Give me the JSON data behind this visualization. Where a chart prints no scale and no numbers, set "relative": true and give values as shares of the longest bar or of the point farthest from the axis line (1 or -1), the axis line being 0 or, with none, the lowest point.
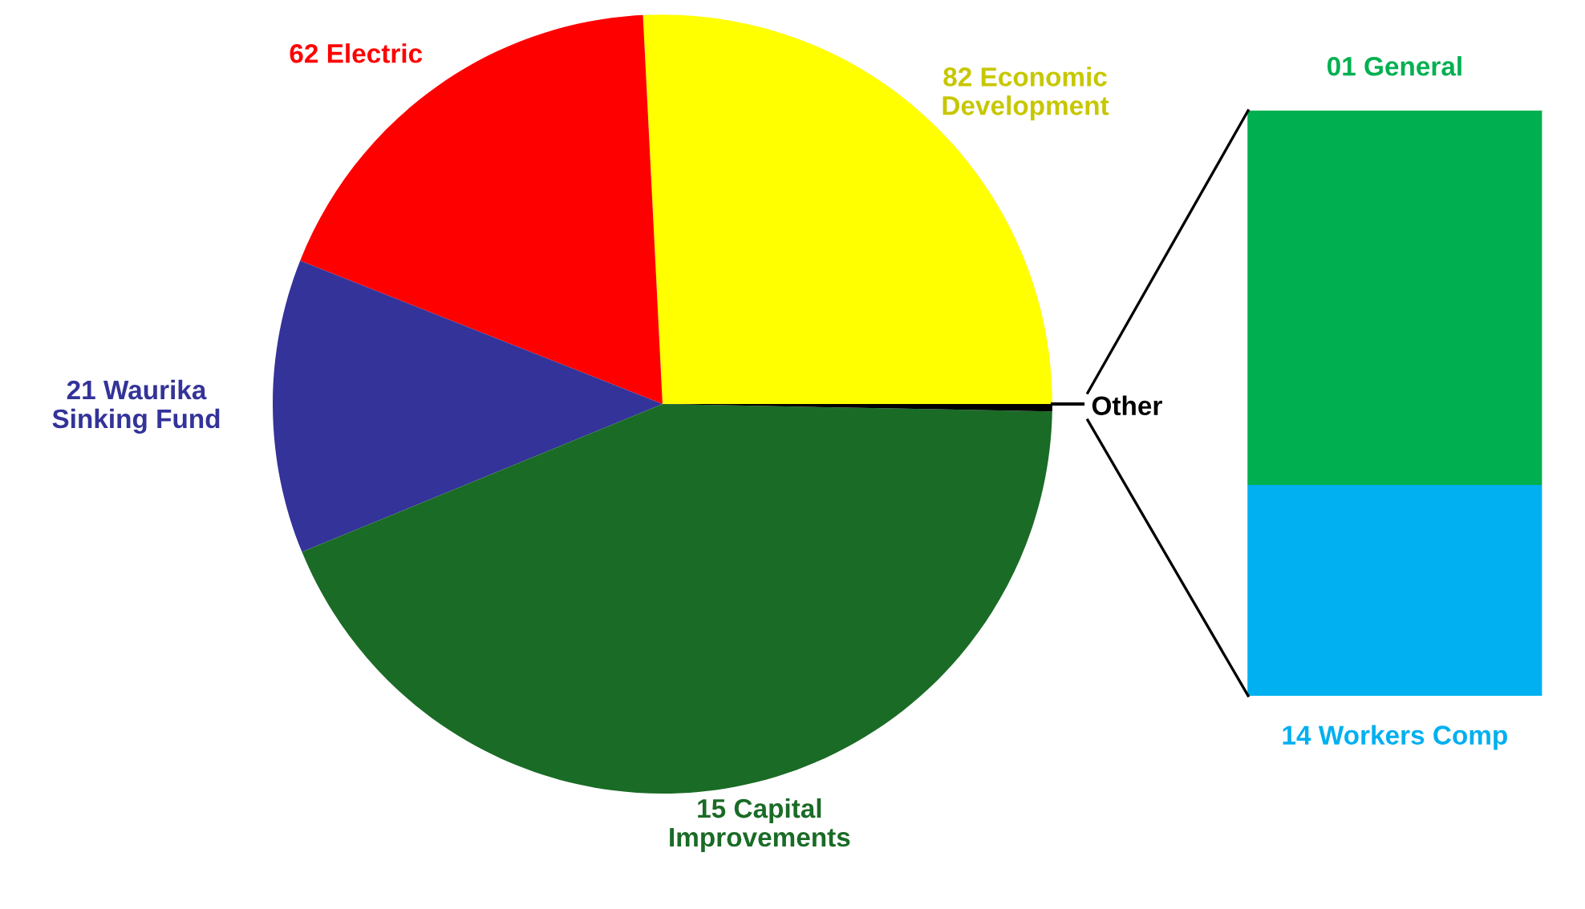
{
  "chart_data": [
    {
      "type": "pie",
      "categories": [
        "82 Economic Development",
        "62 Electric",
        "21 Waurika Sinking Fund",
        "15 Capital Improvements",
        "Other"
      ],
      "values": [
        25.8,
        18.2,
        12.2,
        43.5,
        0.3
      ],
      "colors": [
        "#ffff00",
        "#ff0000",
        "#333399",
        "#1a6b26",
        "#000000"
      ]
    },
    {
      "type": "bar",
      "stacked": true,
      "relative": true,
      "categories": [
        null
      ],
      "series": [
        {
          "name": "14 Workers Comp",
          "color": "#00b0f0",
          "values": [
            0.36
          ]
        },
        {
          "name": "01 General",
          "color": "#00b050",
          "values": [
            0.64
          ]
        }
      ]
    }
  ]
}
